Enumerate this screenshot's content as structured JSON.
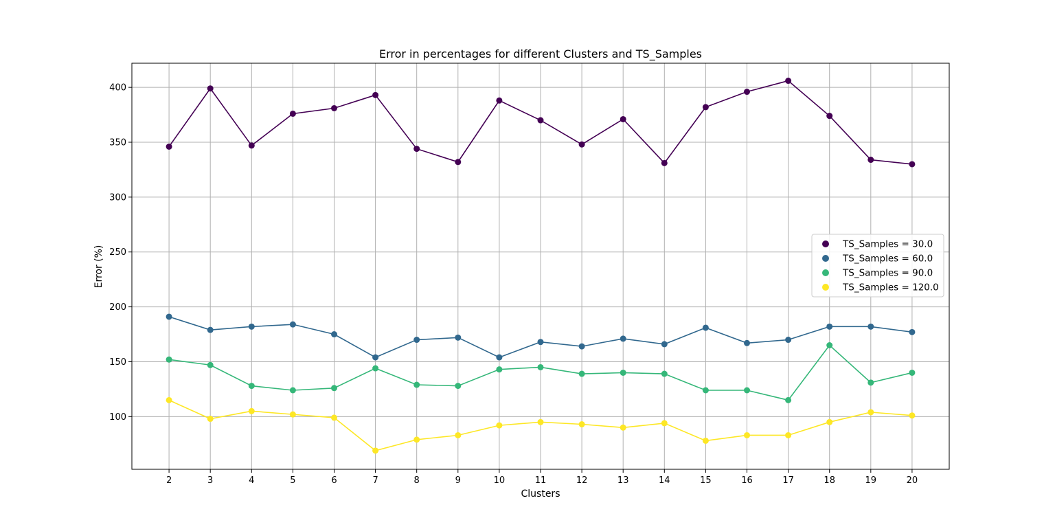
{
  "chart_data": {
    "type": "line",
    "title": "Error in percentages for different Clusters and TS_Samples",
    "xlabel": "Clusters",
    "ylabel": "Error (%)",
    "x": [
      2,
      3,
      4,
      5,
      6,
      7,
      8,
      9,
      10,
      11,
      12,
      13,
      14,
      15,
      16,
      17,
      18,
      19,
      20
    ],
    "x_ticks": [
      "2",
      "3",
      "4",
      "5",
      "6",
      "7",
      "8",
      "9",
      "10",
      "11",
      "12",
      "13",
      "14",
      "15",
      "16",
      "17",
      "18",
      "19",
      "20"
    ],
    "y_ticks": [
      "100",
      "150",
      "200",
      "250",
      "300",
      "350",
      "400"
    ],
    "xlim": [
      1.1,
      20.9
    ],
    "ylim": [
      52,
      422
    ],
    "grid": true,
    "legend_position": "center-right",
    "series": [
      {
        "name": "TS_Samples = 30.0",
        "color": "#440154",
        "values": [
          346,
          399,
          347,
          376,
          381,
          393,
          344,
          332,
          388,
          370,
          348,
          371,
          331,
          382,
          396,
          406,
          374,
          334,
          330
        ]
      },
      {
        "name": "TS_Samples = 60.0",
        "color": "#31688e",
        "values": [
          191,
          179,
          182,
          184,
          175,
          154,
          170,
          172,
          154,
          168,
          164,
          171,
          166,
          181,
          167,
          170,
          182,
          182,
          177
        ]
      },
      {
        "name": "TS_Samples = 90.0",
        "color": "#35b779",
        "values": [
          152,
          147,
          128,
          124,
          126,
          144,
          129,
          128,
          143,
          145,
          139,
          140,
          139,
          124,
          124,
          115,
          165,
          131,
          140
        ]
      },
      {
        "name": "TS_Samples = 120.0",
        "color": "#fde725",
        "values": [
          115,
          98,
          105,
          102,
          99,
          69,
          79,
          83,
          92,
          95,
          93,
          90,
          94,
          78,
          83,
          83,
          95,
          104,
          101
        ]
      }
    ]
  }
}
